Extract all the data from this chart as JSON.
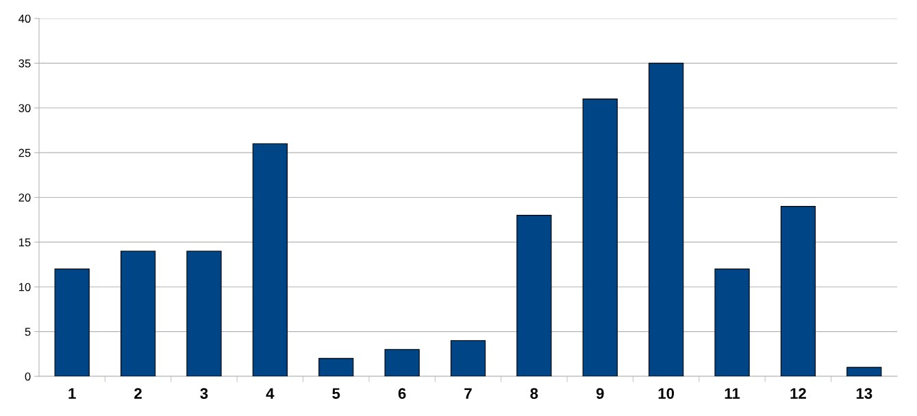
{
  "chart_data": {
    "type": "bar",
    "categories": [
      "1",
      "2",
      "3",
      "4",
      "5",
      "6",
      "7",
      "8",
      "9",
      "10",
      "11",
      "12",
      "13"
    ],
    "values": [
      12,
      14,
      14,
      26,
      2,
      3,
      4,
      18,
      31,
      35,
      12,
      19,
      1
    ],
    "color": "#004586",
    "ylim": [
      0,
      40
    ],
    "yticks": [
      0,
      5,
      10,
      15,
      20,
      25,
      30,
      35,
      40
    ],
    "grid": "y",
    "legend": false
  }
}
